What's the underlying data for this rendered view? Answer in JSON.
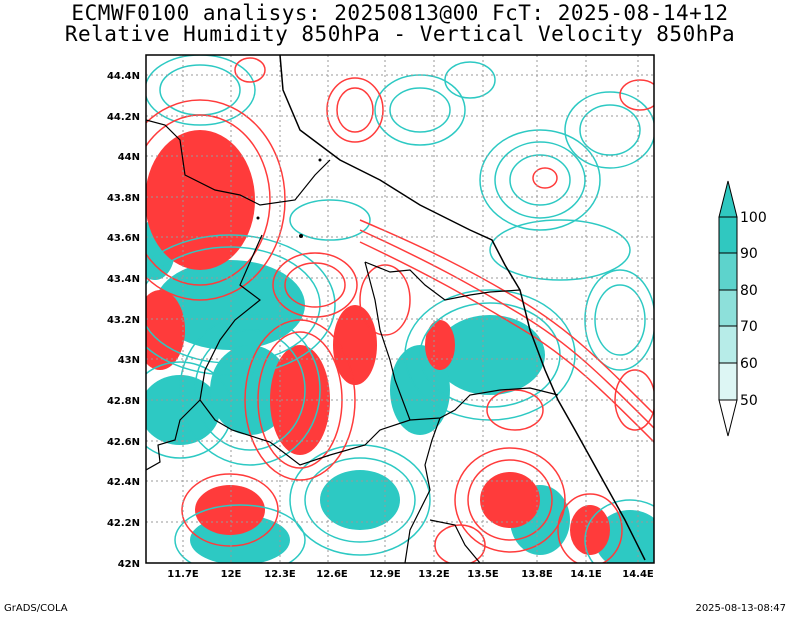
{
  "title_line1": "ECMWF0100 analisys: 20250813@00 FcT: 2025-08-14+12",
  "title_line2": "Relative Humidity 850hPa - Vertical Velocity 850hPa",
  "footer_left": "GrADS/COLA",
  "footer_right": "2025-08-13-08:47",
  "lat_labels": [
    "44.4N",
    "44.2N",
    "44N",
    "43.8N",
    "43.6N",
    "43.4N",
    "43.2N",
    "43N",
    "42.8N",
    "42.6N",
    "42.4N",
    "42.2N",
    "42N"
  ],
  "lon_labels": [
    "11.7E",
    "12E",
    "12.3E",
    "12.6E",
    "12.9E",
    "13.2E",
    "13.5E",
    "13.8E",
    "14.1E",
    "14.4E"
  ],
  "colorbar": {
    "levels": [
      "100",
      "90",
      "80",
      "70",
      "60",
      "50"
    ],
    "colors": [
      "#30c8c0",
      "#5dd3cc",
      "#8de0da",
      "#b7ece8",
      "#ddf6f4",
      "#ffffff"
    ]
  },
  "colors": {
    "humidity": "#2dc9c3",
    "velocity": "#ff3b3b",
    "boundary": "#000000",
    "grid": "#999999"
  }
}
